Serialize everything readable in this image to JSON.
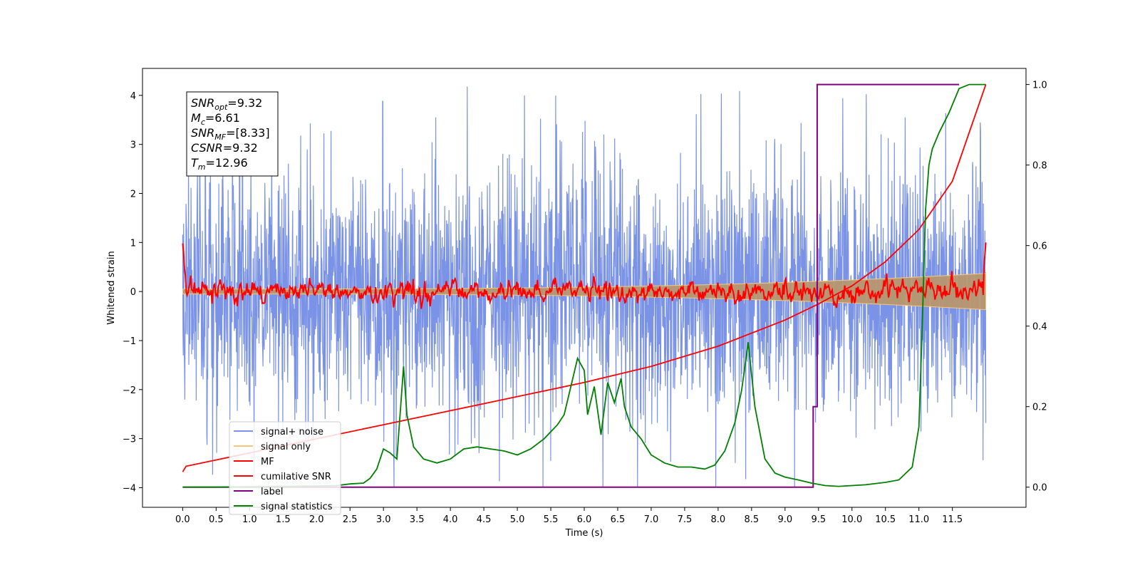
{
  "chart_data": {
    "type": "line",
    "xlabel": "Time (s)",
    "ylabel": "Whitened strain",
    "xlim": [
      -0.6,
      12.6
    ],
    "ylim": [
      -4.4,
      4.55
    ],
    "y2lim": [
      -0.05,
      1.04
    ],
    "x_ticks": [
      "0.0",
      "0.5",
      "1.0",
      "1.5",
      "2.0",
      "2.5",
      "3.0",
      "3.5",
      "4.0",
      "4.5",
      "5.0",
      "5.5",
      "6.0",
      "6.5",
      "7.0",
      "7.5",
      "8.0",
      "8.5",
      "9.0",
      "9.5",
      "10.0",
      "10.5",
      "11.0",
      "11.5"
    ],
    "y_ticks": [
      "4",
      "3",
      "2",
      "1",
      "0",
      "−1",
      "−2",
      "−3",
      "−4"
    ],
    "y2_ticks": [
      "1.0",
      "0.8",
      "0.6",
      "0.4",
      "0.2",
      "0.0"
    ],
    "grid": false,
    "legend_position": "bottom-left",
    "annotation_box": {
      "lines": [
        {
          "var": "SNR",
          "sub": "opt",
          "value": "=9.32"
        },
        {
          "var": "M",
          "sub": "c",
          "value": "=6.61"
        },
        {
          "var": "SNR",
          "sub": "MF",
          "value": "=[8.33]"
        },
        {
          "var": "CSNR",
          "sub": "",
          "value": "=9.32"
        },
        {
          "var": "T",
          "sub": "m",
          "value": "=12.96"
        }
      ]
    },
    "series": [
      {
        "name": "signal+ noise",
        "axis": "left",
        "color": "#7b93e6",
        "kind": "noise",
        "x_range": [
          0,
          12
        ],
        "spread": 1.25,
        "clip": [
          -4.0,
          4.18
        ]
      },
      {
        "name": "signal only",
        "axis": "left",
        "color": "#f5c77e",
        "kind": "chirp_band",
        "x_range": [
          0,
          12
        ],
        "amplitude_start": 0.05,
        "amplitude_end": 0.37
      },
      {
        "name": "MF",
        "axis": "left",
        "color": "#ff0000",
        "kind": "mf",
        "x_range": [
          0,
          12
        ],
        "start": 0.98,
        "end": 1.0,
        "spread": 0.12
      },
      {
        "name": "cumilative SNR",
        "axis": "right",
        "color": "#ff0000",
        "kind": "curve",
        "x": [
          0,
          0.05,
          1.0,
          2.0,
          3.0,
          4.0,
          5.0,
          6.0,
          7.0,
          8.0,
          9.0,
          9.5,
          10.0,
          10.5,
          11.0,
          11.5,
          12.0
        ],
        "y": [
          0.038,
          0.052,
          0.085,
          0.12,
          0.155,
          0.19,
          0.225,
          0.26,
          0.3,
          0.35,
          0.415,
          0.455,
          0.5,
          0.56,
          0.64,
          0.76,
          1.0
        ]
      },
      {
        "name": "label",
        "axis": "right",
        "color": "#800080",
        "kind": "step",
        "x": [
          0,
          9.42,
          9.42,
          9.48,
          9.48,
          11.6
        ],
        "y": [
          0,
          0,
          0.2,
          0.2,
          1.0,
          1.0
        ]
      },
      {
        "name": "signal statistics",
        "axis": "right",
        "color": "#008000",
        "kind": "curve",
        "x": [
          0,
          0.5,
          1.0,
          1.5,
          2.0,
          2.3,
          2.5,
          2.7,
          2.8,
          2.9,
          3.0,
          3.1,
          3.2,
          3.3,
          3.35,
          3.45,
          3.6,
          3.8,
          4.0,
          4.2,
          4.4,
          4.6,
          4.8,
          5.0,
          5.2,
          5.4,
          5.6,
          5.7,
          5.8,
          5.9,
          6.0,
          6.05,
          6.15,
          6.25,
          6.35,
          6.45,
          6.55,
          6.6,
          6.7,
          6.85,
          7.0,
          7.2,
          7.4,
          7.6,
          7.8,
          7.95,
          8.1,
          8.25,
          8.35,
          8.45,
          8.55,
          8.7,
          8.85,
          9.0,
          9.2,
          9.4,
          9.6,
          9.8,
          10.0,
          10.2,
          10.5,
          10.7,
          10.9,
          11.0,
          11.05,
          11.1,
          11.15,
          11.2,
          11.3,
          11.45,
          11.6,
          11.75,
          11.9,
          12.0
        ],
        "y": [
          0.0,
          0.0,
          0.001,
          0.002,
          0.003,
          0.004,
          0.008,
          0.01,
          0.022,
          0.045,
          0.095,
          0.085,
          0.07,
          0.3,
          0.18,
          0.1,
          0.07,
          0.06,
          0.07,
          0.095,
          0.1,
          0.095,
          0.09,
          0.08,
          0.095,
          0.12,
          0.155,
          0.18,
          0.25,
          0.32,
          0.29,
          0.18,
          0.25,
          0.13,
          0.26,
          0.21,
          0.27,
          0.2,
          0.15,
          0.12,
          0.08,
          0.06,
          0.05,
          0.05,
          0.045,
          0.055,
          0.09,
          0.16,
          0.24,
          0.36,
          0.2,
          0.07,
          0.035,
          0.025,
          0.018,
          0.01,
          0.004,
          0.002,
          0.004,
          0.006,
          0.012,
          0.018,
          0.05,
          0.15,
          0.4,
          0.69,
          0.8,
          0.84,
          0.88,
          0.93,
          0.99,
          1.0,
          1.0,
          1.0
        ]
      }
    ]
  }
}
